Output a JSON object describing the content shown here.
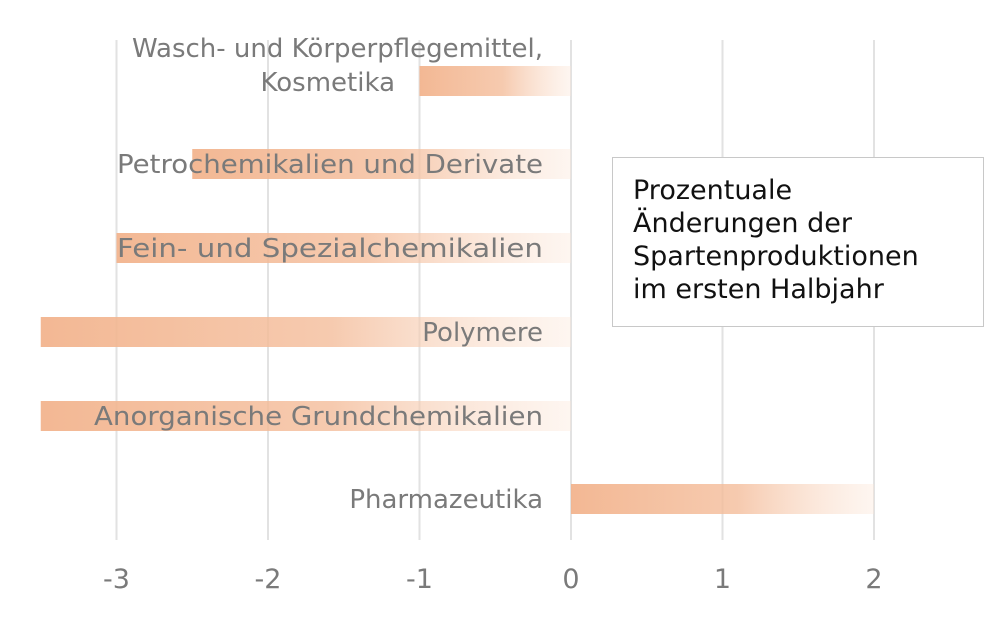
{
  "chart_data": {
    "type": "bar",
    "orientation": "horizontal",
    "categories": [
      [
        "Wasch- und Körperpflegemittel,",
        "Kosmetika"
      ],
      [
        "Petrochemikalien und Derivate"
      ],
      [
        "Fein- und Spezialchemikalien"
      ],
      [
        "Polymere"
      ],
      [
        "Anorganische Grundchemikalien"
      ],
      [
        "Pharmazeutika"
      ]
    ],
    "values": [
      -1.0,
      -2.5,
      -3.0,
      -3.5,
      -3.5,
      2.0
    ],
    "xlim": [
      -3.5,
      2.5
    ],
    "xticks": [
      "-3",
      "-2",
      "-1",
      "0",
      "1",
      "2"
    ],
    "tick_values": [
      -3,
      -2,
      -1,
      0,
      1,
      2
    ],
    "grid": true,
    "bar_color": "#f2b48e",
    "label_color": "#7a7a7a",
    "grid_color": "#e2e2e2"
  },
  "annotation": {
    "lines": [
      "Prozentuale",
      "Änderungen der",
      "Spartenproduktionen",
      "im ersten Halbjahr"
    ]
  }
}
